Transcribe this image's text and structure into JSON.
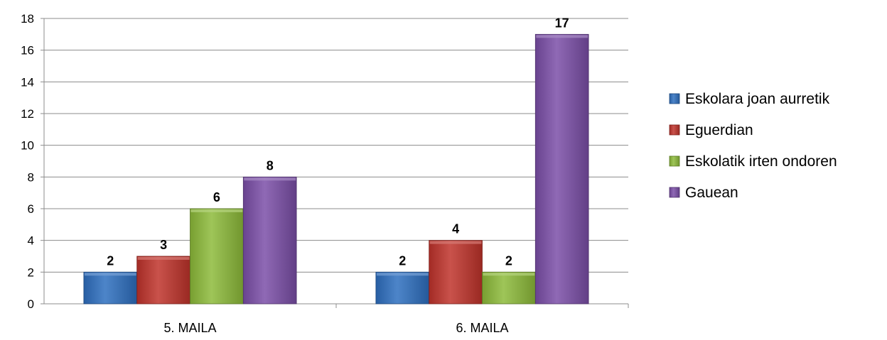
{
  "chart_data": {
    "type": "bar",
    "categories": [
      "5. MAILA",
      "6. MAILA"
    ],
    "series": [
      {
        "name": "Eskolara joan aurretik",
        "values": [
          2,
          2
        ],
        "color": "#2E6FC0"
      },
      {
        "name": "Eguerdian",
        "values": [
          3,
          4
        ],
        "color": "#C0332B"
      },
      {
        "name": "Eskolatik irten ondoren",
        "values": [
          6,
          2
        ],
        "color": "#8DBB3A"
      },
      {
        "name": "Gauean",
        "values": [
          8,
          17
        ],
        "color": "#7B4FA8"
      }
    ],
    "ylim": [
      0,
      18
    ],
    "yticks": [
      0,
      2,
      4,
      6,
      8,
      10,
      12,
      14,
      16,
      18
    ],
    "grid": true,
    "legend_position": "right",
    "data_labels": true,
    "title": "",
    "xlabel": "",
    "ylabel": ""
  }
}
